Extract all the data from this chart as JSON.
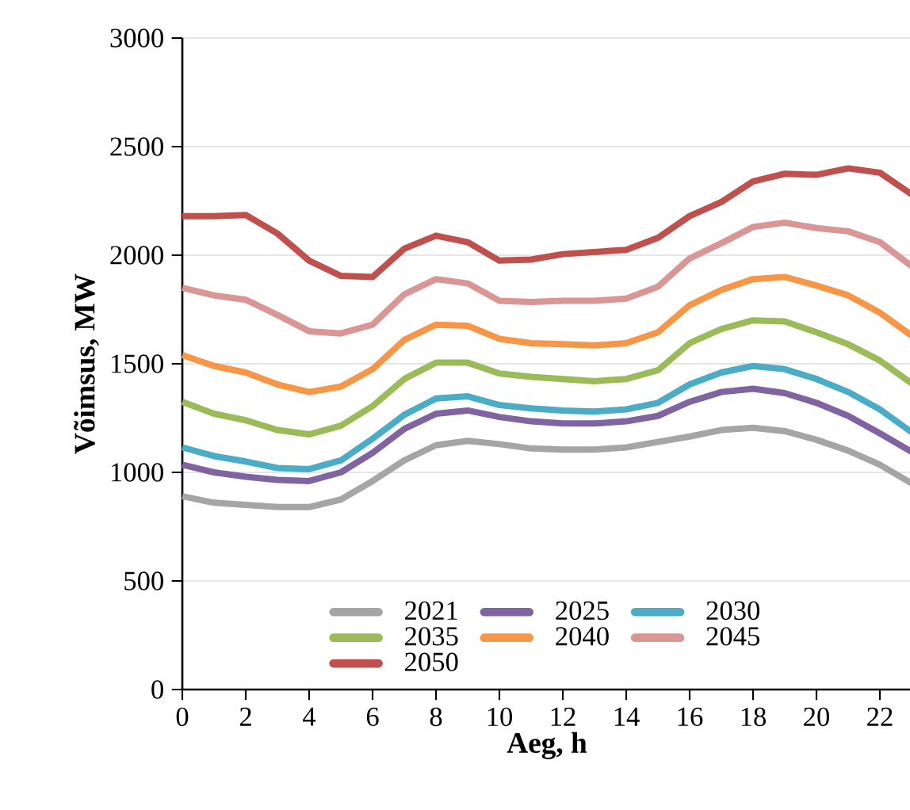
{
  "chart_data": {
    "type": "line",
    "xlabel": "Aeg, h",
    "ylabel": "Võimsus, MW",
    "x": [
      0,
      1,
      2,
      3,
      4,
      5,
      6,
      7,
      8,
      9,
      10,
      11,
      12,
      13,
      14,
      15,
      16,
      17,
      18,
      19,
      20,
      21,
      22,
      23
    ],
    "xlim": [
      0,
      23
    ],
    "xticks": [
      0,
      2,
      4,
      6,
      8,
      10,
      12,
      14,
      16,
      18,
      20,
      22
    ],
    "ylim": [
      0,
      3000
    ],
    "yticks": [
      0,
      500,
      1000,
      1500,
      2000,
      2500,
      3000
    ],
    "grid": "y",
    "legend": "bottom",
    "marker": "none",
    "line_style": "solid",
    "series": [
      {
        "name": "2021",
        "color": "#a5a5a5",
        "values": [
          890,
          860,
          850,
          840,
          840,
          875,
          960,
          1055,
          1125,
          1145,
          1130,
          1110,
          1105,
          1105,
          1115,
          1140,
          1165,
          1195,
          1205,
          1190,
          1150,
          1100,
          1035,
          950
        ]
      },
      {
        "name": "2025",
        "color": "#8064a2",
        "values": [
          1035,
          1000,
          980,
          965,
          960,
          1000,
          1090,
          1200,
          1270,
          1285,
          1255,
          1235,
          1225,
          1225,
          1235,
          1260,
          1325,
          1370,
          1385,
          1365,
          1320,
          1260,
          1180,
          1095
        ]
      },
      {
        "name": "2030",
        "color": "#4bacc6",
        "values": [
          1115,
          1075,
          1050,
          1020,
          1015,
          1055,
          1155,
          1265,
          1340,
          1350,
          1310,
          1295,
          1285,
          1280,
          1290,
          1320,
          1405,
          1460,
          1490,
          1475,
          1430,
          1370,
          1290,
          1185
        ]
      },
      {
        "name": "2035",
        "color": "#9bbb59",
        "values": [
          1325,
          1270,
          1240,
          1195,
          1175,
          1215,
          1305,
          1430,
          1505,
          1505,
          1455,
          1440,
          1430,
          1420,
          1430,
          1470,
          1595,
          1660,
          1700,
          1695,
          1645,
          1590,
          1515,
          1410
        ]
      },
      {
        "name": "2040",
        "color": "#f79646",
        "values": [
          1540,
          1490,
          1460,
          1405,
          1370,
          1395,
          1475,
          1610,
          1680,
          1675,
          1615,
          1595,
          1590,
          1585,
          1595,
          1645,
          1770,
          1840,
          1890,
          1900,
          1860,
          1815,
          1735,
          1630
        ]
      },
      {
        "name": "2045",
        "color": "#d99694",
        "values": [
          1850,
          1815,
          1795,
          1725,
          1650,
          1640,
          1680,
          1820,
          1890,
          1870,
          1790,
          1785,
          1790,
          1790,
          1800,
          1855,
          1985,
          2055,
          2130,
          2150,
          2125,
          2110,
          2060,
          1950
        ]
      },
      {
        "name": "2050",
        "color": "#c0504d",
        "values": [
          2180,
          2180,
          2185,
          2100,
          1975,
          1905,
          1900,
          2030,
          2090,
          2060,
          1975,
          1980,
          2005,
          2015,
          2025,
          2080,
          2180,
          2245,
          2340,
          2375,
          2370,
          2400,
          2380,
          2280
        ]
      }
    ]
  }
}
